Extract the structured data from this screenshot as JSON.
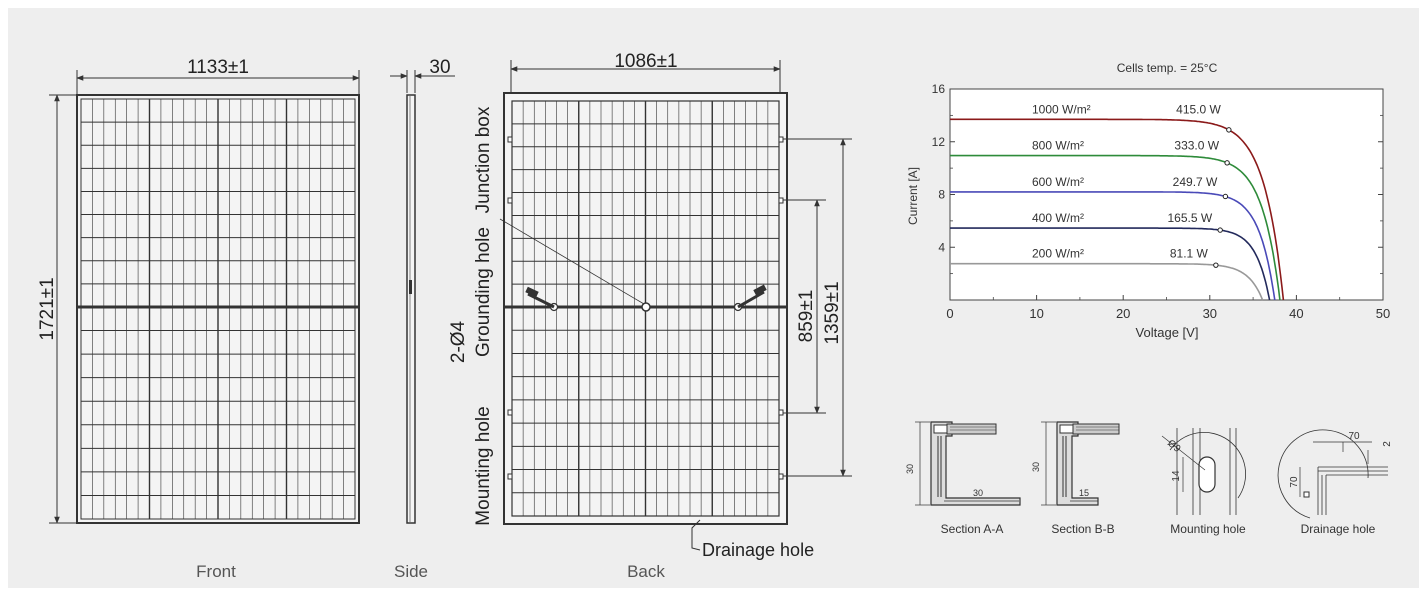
{
  "drawing": {
    "front": {
      "view_label": "Front",
      "width_label": "1133±1",
      "height_label": "1721±1"
    },
    "side": {
      "view_label": "Side",
      "thickness_label": "30"
    },
    "back": {
      "view_label": "Back",
      "width_label": "1086±1",
      "junction_box_label": "Junction box",
      "grounding_hole_label": "Grounding hole",
      "grounding_hole_spec": "2-Ø4",
      "mounting_hole_label": "Mounting hole",
      "drainage_hole_label": "Drainage hole",
      "mount_spacing_label": "859±1",
      "mount_outer_label": "1359±1"
    }
  },
  "details": {
    "section_aa": {
      "label": "Section A-A",
      "dim_height": "30",
      "dim_width": "30"
    },
    "section_bb": {
      "label": "Section B-B",
      "dim_height": "30",
      "dim_width": "15"
    },
    "mounting_hole": {
      "label": "Mounting hole",
      "dim_diameter": "Ø9",
      "dim_length": "14"
    },
    "drainage_hole": {
      "label": "Drainage hole",
      "dim_width": "70",
      "dim_gap": "2",
      "dim_height": "70"
    }
  },
  "chart_data": {
    "type": "line",
    "title": "Cells temp. = 25°C",
    "xlabel": "Voltage [V]",
    "ylabel": "Current [A]",
    "xlim": [
      0,
      50
    ],
    "ylim": [
      0,
      16
    ],
    "xticks": [
      0,
      10,
      20,
      30,
      40,
      50
    ],
    "yticks": [
      4,
      8,
      12,
      16
    ],
    "grid": false,
    "series": [
      {
        "name": "1000 W/m²",
        "power_label": "415.0 W",
        "color": "#8b1a1a",
        "isc": 13.7,
        "voc": 38.5,
        "vmp": 32.2,
        "imp": 12.9
      },
      {
        "name": "800 W/m²",
        "power_label": "333.0 W",
        "color": "#2e8b3a",
        "isc": 10.95,
        "voc": 38.1,
        "vmp": 32.0,
        "imp": 10.4
      },
      {
        "name": "600 W/m²",
        "power_label": "249.7 W",
        "color": "#4a4ab8",
        "isc": 8.2,
        "voc": 37.5,
        "vmp": 31.8,
        "imp": 7.85
      },
      {
        "name": "400 W/m²",
        "power_label": "165.5 W",
        "color": "#232a5c",
        "isc": 5.45,
        "voc": 36.9,
        "vmp": 31.2,
        "imp": 5.3
      },
      {
        "name": "200 W/m²",
        "power_label": "81.1 W",
        "color": "#999999",
        "isc": 2.75,
        "voc": 36.1,
        "vmp": 30.7,
        "imp": 2.64
      }
    ]
  }
}
